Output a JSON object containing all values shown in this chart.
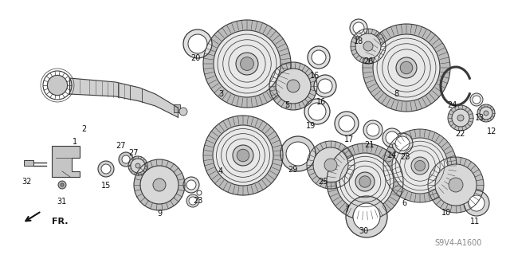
{
  "bg_color": "#ffffff",
  "lc": "#3a3a3a",
  "fig_width": 6.4,
  "fig_height": 3.2,
  "dpi": 100,
  "watermark": "S9V4-A1600",
  "fr_label": "FR."
}
